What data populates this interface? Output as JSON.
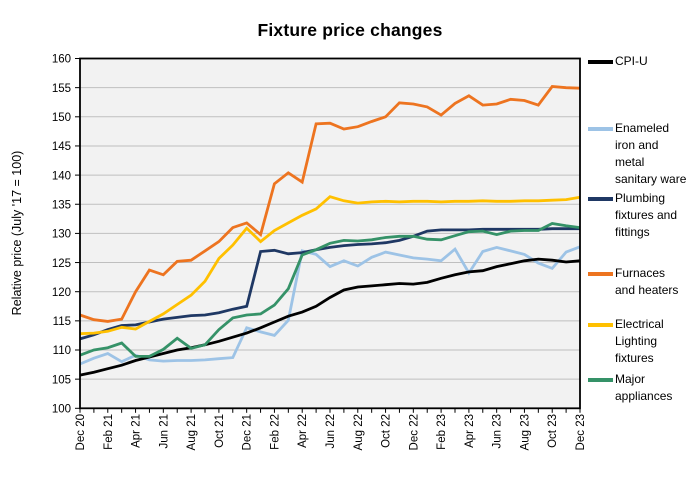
{
  "title": "Fixture price changes",
  "y_axis_label": "Relative price (July '17 = 100)",
  "chart_data": {
    "type": "line",
    "x": [
      "Dec 20",
      "Jan 21",
      "Feb 21",
      "Mar 21",
      "Apr 21",
      "May 21",
      "Jun 21",
      "Jul 21",
      "Aug 21",
      "Sep 21",
      "Oct 21",
      "Nov 21",
      "Dec 21",
      "Jan 22",
      "Feb 22",
      "Mar 22",
      "Apr 22",
      "May 22",
      "Jun 22",
      "Jul 22",
      "Aug 22",
      "Sep 22",
      "Oct 22",
      "Nov 22",
      "Dec 22",
      "Jan 23",
      "Feb 23",
      "Mar 23",
      "Apr 23",
      "May 23",
      "Jun 23",
      "Jul 23",
      "Aug 23",
      "Sep 23",
      "Oct 23",
      "Nov 23",
      "Dec 23"
    ],
    "x_tick_labels": [
      "Dec 20",
      "Feb 21",
      "Apr 21",
      "Jun 21",
      "Aug 21",
      "Oct 21",
      "Dec 21",
      "Feb 22",
      "Apr 22",
      "Jun 22",
      "Aug 22",
      "Oct 22",
      "Dec 22",
      "Feb 23",
      "Apr 23",
      "Jun 23",
      "Aug 23",
      "Oct 23",
      "Dec 23"
    ],
    "x_labels_shown_every": 2,
    "ylim": [
      100,
      160
    ],
    "y_ticks": [
      100,
      105,
      110,
      115,
      120,
      125,
      130,
      135,
      140,
      145,
      150,
      155,
      160
    ],
    "grid": "horizontal",
    "legend_position": "right",
    "plot_bg_color": "#F2F2F2",
    "gridline_color": "#BFBFBF",
    "series": [
      {
        "name": "CPI-U",
        "color": "#000000",
        "values": [
          105.7,
          106.2,
          106.8,
          107.4,
          108.2,
          108.8,
          109.4,
          110.0,
          110.4,
          110.9,
          111.5,
          112.2,
          112.9,
          113.8,
          114.8,
          115.8,
          116.5,
          117.5,
          119.0,
          120.3,
          120.8,
          121.0,
          121.2,
          121.4,
          121.3,
          121.6,
          122.3,
          122.9,
          123.4,
          123.6,
          124.3,
          124.8,
          125.3,
          125.6,
          125.4,
          125.1,
          125.3
        ]
      },
      {
        "name": "Enameled iron and metal sanitary ware",
        "color": "#9DC3E6",
        "values": [
          107.6,
          108.6,
          109.4,
          108.0,
          109.1,
          108.3,
          108.1,
          108.2,
          108.2,
          108.3,
          108.5,
          108.7,
          113.8,
          113.1,
          112.5,
          115.1,
          127.0,
          126.4,
          124.3,
          125.3,
          124.4,
          125.9,
          126.8,
          126.3,
          125.8,
          125.6,
          125.3,
          127.3,
          123.2,
          126.9,
          127.6,
          127.0,
          126.4,
          124.9,
          124.0,
          126.8,
          127.7
        ]
      },
      {
        "name": "Plumbing fixtures and fittings",
        "color": "#1F3864",
        "values": [
          111.9,
          112.6,
          113.5,
          114.2,
          114.3,
          114.8,
          115.3,
          115.6,
          115.9,
          116.0,
          116.4,
          117.0,
          117.5,
          126.9,
          127.1,
          126.5,
          126.7,
          127.2,
          127.6,
          127.9,
          128.1,
          128.2,
          128.4,
          128.8,
          129.5,
          130.4,
          130.6,
          130.6,
          130.6,
          130.7,
          130.7,
          130.7,
          130.7,
          130.7,
          130.8,
          130.8,
          130.8
        ]
      },
      {
        "name": "Furnaces and heaters",
        "color": "#ED7420",
        "values": [
          116.0,
          115.2,
          114.9,
          115.3,
          120.0,
          123.7,
          122.9,
          125.2,
          125.4,
          127.0,
          128.6,
          131.0,
          131.8,
          129.8,
          138.5,
          140.4,
          138.8,
          148.8,
          148.9,
          147.9,
          148.3,
          149.2,
          150.0,
          152.4,
          152.2,
          151.7,
          150.3,
          152.3,
          153.6,
          152.0,
          152.2,
          153.0,
          152.8,
          152.0,
          155.2,
          155.0,
          154.9
        ]
      },
      {
        "name": "Electrical Lighting fixtures",
        "color": "#FFC000",
        "values": [
          112.8,
          112.9,
          113.2,
          113.9,
          113.6,
          114.9,
          116.2,
          117.8,
          119.4,
          121.8,
          125.7,
          128.0,
          130.9,
          128.6,
          130.5,
          131.8,
          133.1,
          134.2,
          136.3,
          135.6,
          135.2,
          135.4,
          135.5,
          135.4,
          135.5,
          135.5,
          135.4,
          135.5,
          135.5,
          135.6,
          135.5,
          135.5,
          135.6,
          135.6,
          135.7,
          135.8,
          136.2
        ]
      },
      {
        "name": "Major appliances",
        "color": "#359268",
        "values": [
          109.1,
          110.0,
          110.4,
          111.2,
          108.9,
          108.9,
          110.1,
          112.0,
          110.3,
          110.9,
          113.5,
          115.5,
          116.0,
          116.2,
          117.7,
          120.5,
          126.3,
          127.2,
          128.3,
          128.8,
          128.7,
          128.9,
          129.3,
          129.5,
          129.5,
          129.0,
          128.9,
          129.6,
          130.3,
          130.4,
          129.8,
          130.4,
          130.5,
          130.5,
          131.7,
          131.3,
          131.0
        ]
      }
    ]
  }
}
